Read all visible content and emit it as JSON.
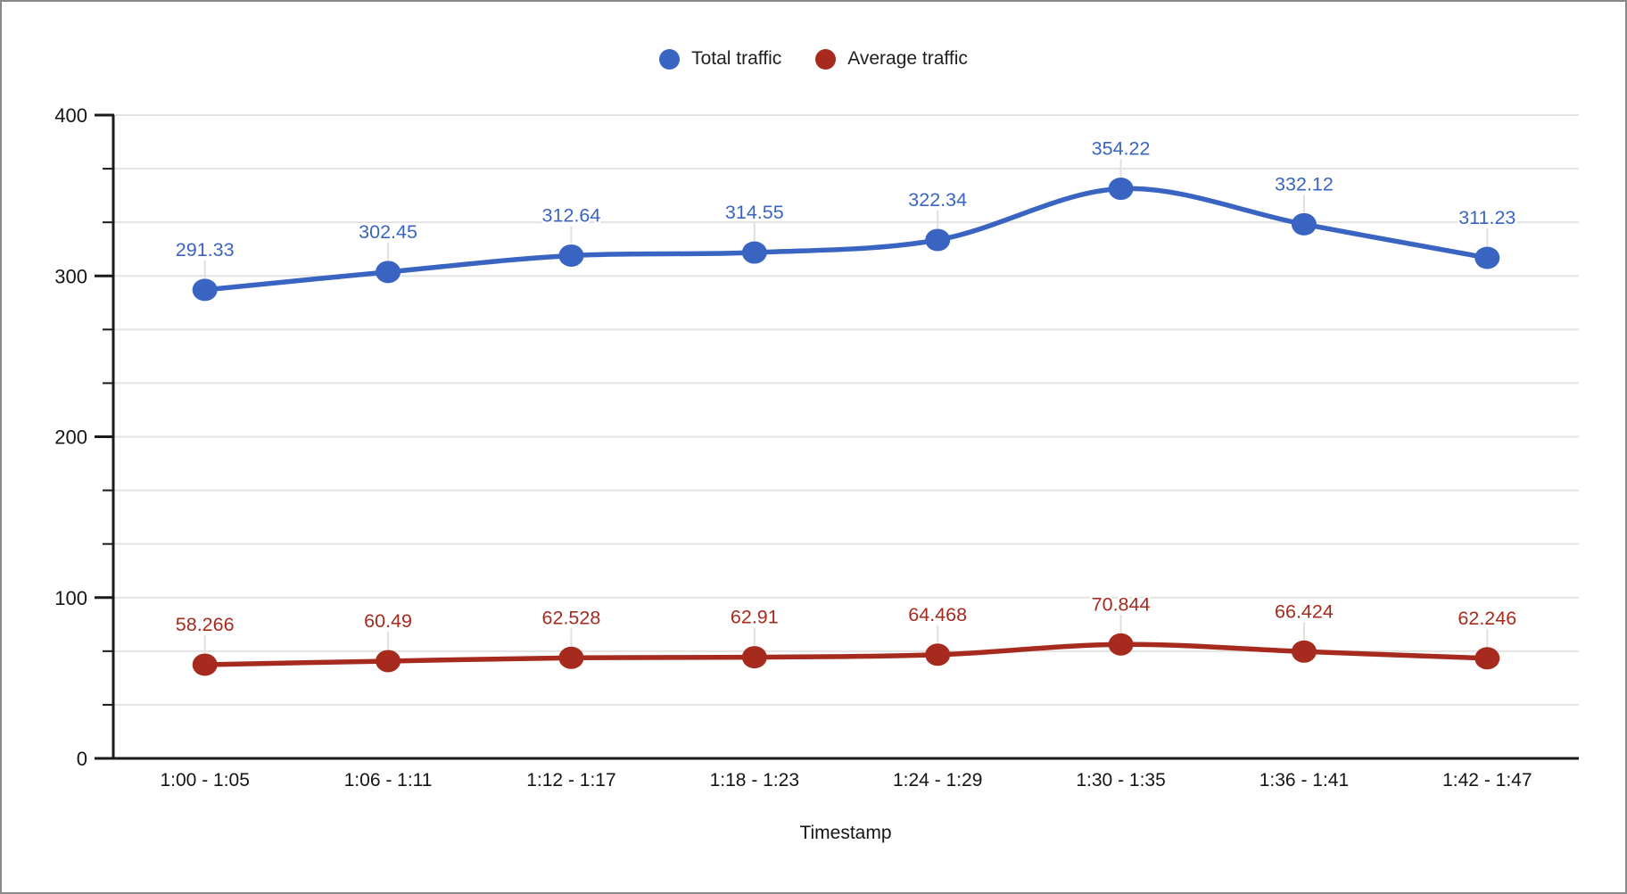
{
  "chart_data": {
    "type": "line",
    "smooth": true,
    "title": "",
    "xlabel": "Timestamp",
    "ylabel": "",
    "categories": [
      "1:00 - 1:05",
      "1:06 - 1:11",
      "1:12 - 1:17",
      "1:18 - 1:23",
      "1:24 - 1:29",
      "1:30 - 1:35",
      "1:36 - 1:41",
      "1:42 - 1:47"
    ],
    "series": [
      {
        "name": "Total traffic",
        "color": "#3A64C2",
        "values": [
          291.33,
          302.45,
          312.64,
          314.55,
          322.34,
          354.22,
          332.12,
          311.23
        ],
        "point_labels": [
          "291.33",
          "302.45",
          "312.64",
          "314.55",
          "322.34",
          "354.22",
          "332.12",
          "311.23"
        ]
      },
      {
        "name": "Average traffic",
        "color": "#A62B1E",
        "values": [
          58.266,
          60.49,
          62.528,
          62.91,
          64.468,
          70.844,
          66.424,
          62.246
        ],
        "point_labels": [
          "58.266",
          "60.49",
          "62.528",
          "62.91",
          "64.468",
          "70.844",
          "66.424",
          "62.246"
        ]
      }
    ],
    "yaxis": {
      "min": 0,
      "max": 400,
      "major_ticks": [
        0,
        100,
        200,
        300,
        400
      ],
      "tick_labels": [
        "0",
        "100",
        "200",
        "300",
        "400"
      ],
      "minor_divisions_per_major": 3
    },
    "grid": true,
    "legend_position": "top",
    "point_labels_visible": true
  },
  "style": {
    "background": "#ffffff",
    "frame_border": "#8a8a8a",
    "axis_color": "#1a1a1a",
    "gridline_color": "#e3e3e3",
    "leader_line_color": "#e0e0e0",
    "text_color": "#1f1f1f"
  }
}
